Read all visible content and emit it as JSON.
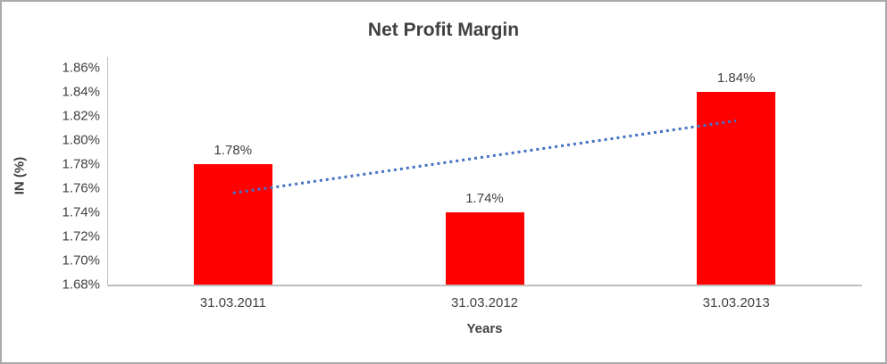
{
  "chart_data": {
    "type": "bar",
    "title": "Net Profit Margin",
    "categories": [
      "31.03.2011",
      "31.03.2012",
      "31.03.2013"
    ],
    "values": [
      1.78,
      1.74,
      1.84
    ],
    "data_labels": [
      "1.78%",
      "1.74%",
      "1.84%"
    ],
    "xlabel": "Years",
    "ylabel": "IN (%)",
    "ylim": [
      1.68,
      1.86
    ],
    "ytick_step": 0.02,
    "ytick_labels": [
      "1.68%",
      "1.70%",
      "1.72%",
      "1.74%",
      "1.76%",
      "1.78%",
      "1.80%",
      "1.82%",
      "1.84%",
      "1.86%"
    ],
    "grid": false,
    "legend": "none",
    "bar_color": "#ff0000",
    "trendline": {
      "style": "dotted",
      "color": "#4472c4",
      "start_value": 1.756,
      "end_value": 1.816
    }
  }
}
